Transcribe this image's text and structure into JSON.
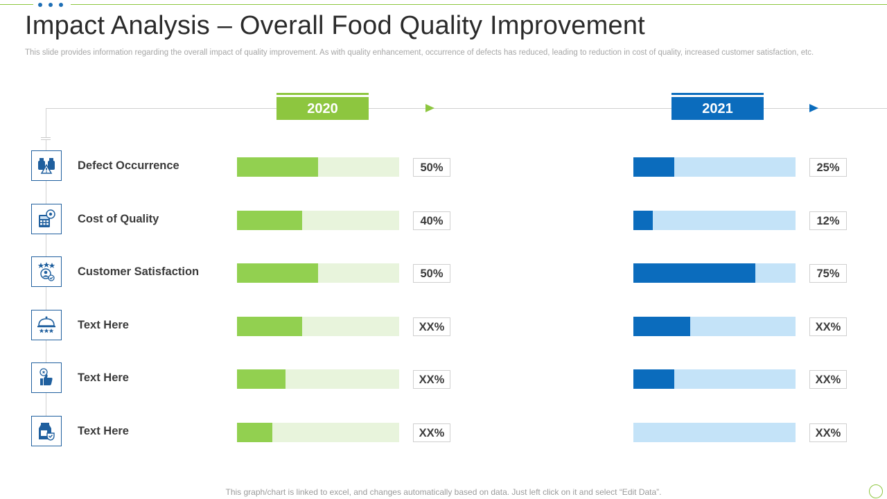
{
  "slide": {
    "title": "Impact Analysis – Overall Food Quality Improvement",
    "subtitle": "This slide provides information regarding the overall impact of quality improvement. As with quality enhancement, occurrence of defects has reduced, leading to reduction in cost of quality,  increased customer satisfaction, etc.",
    "footer": "This graph/chart is linked to excel,  and changes automatically based on data. Just left click on it and select “Edit Data”."
  },
  "colors": {
    "green": "#92d050",
    "green_light": "#e8f4dc",
    "blue": "#0b6cbd",
    "blue_light": "#c4e3f8"
  },
  "chart_data": {
    "type": "bar",
    "title": "Impact Analysis – Overall Food Quality Improvement",
    "categories": [
      "Defect Occurrence",
      "Cost of Quality",
      "Customer Satisfaction",
      "Text Here",
      "Text Here",
      "Text Here"
    ],
    "icons": [
      "defect-occurrence-icon",
      "cost-calculator-icon",
      "customer-satisfaction-icon",
      "food-cloche-icon",
      "thumbs-up-icon",
      "milk-carton-icon"
    ],
    "series": [
      {
        "name": "2020",
        "values": [
          50,
          40,
          50,
          40,
          30,
          22
        ],
        "labels": [
          "50%",
          "40%",
          "50%",
          "XX%",
          "XX%",
          "XX%"
        ]
      },
      {
        "name": "2021",
        "values": [
          25,
          12,
          75,
          35,
          25,
          0
        ],
        "labels": [
          "25%",
          "12%",
          "75%",
          "XX%",
          "XX%",
          "XX%"
        ]
      }
    ],
    "ylim": [
      0,
      100
    ],
    "xlabel": "",
    "ylabel": ""
  }
}
